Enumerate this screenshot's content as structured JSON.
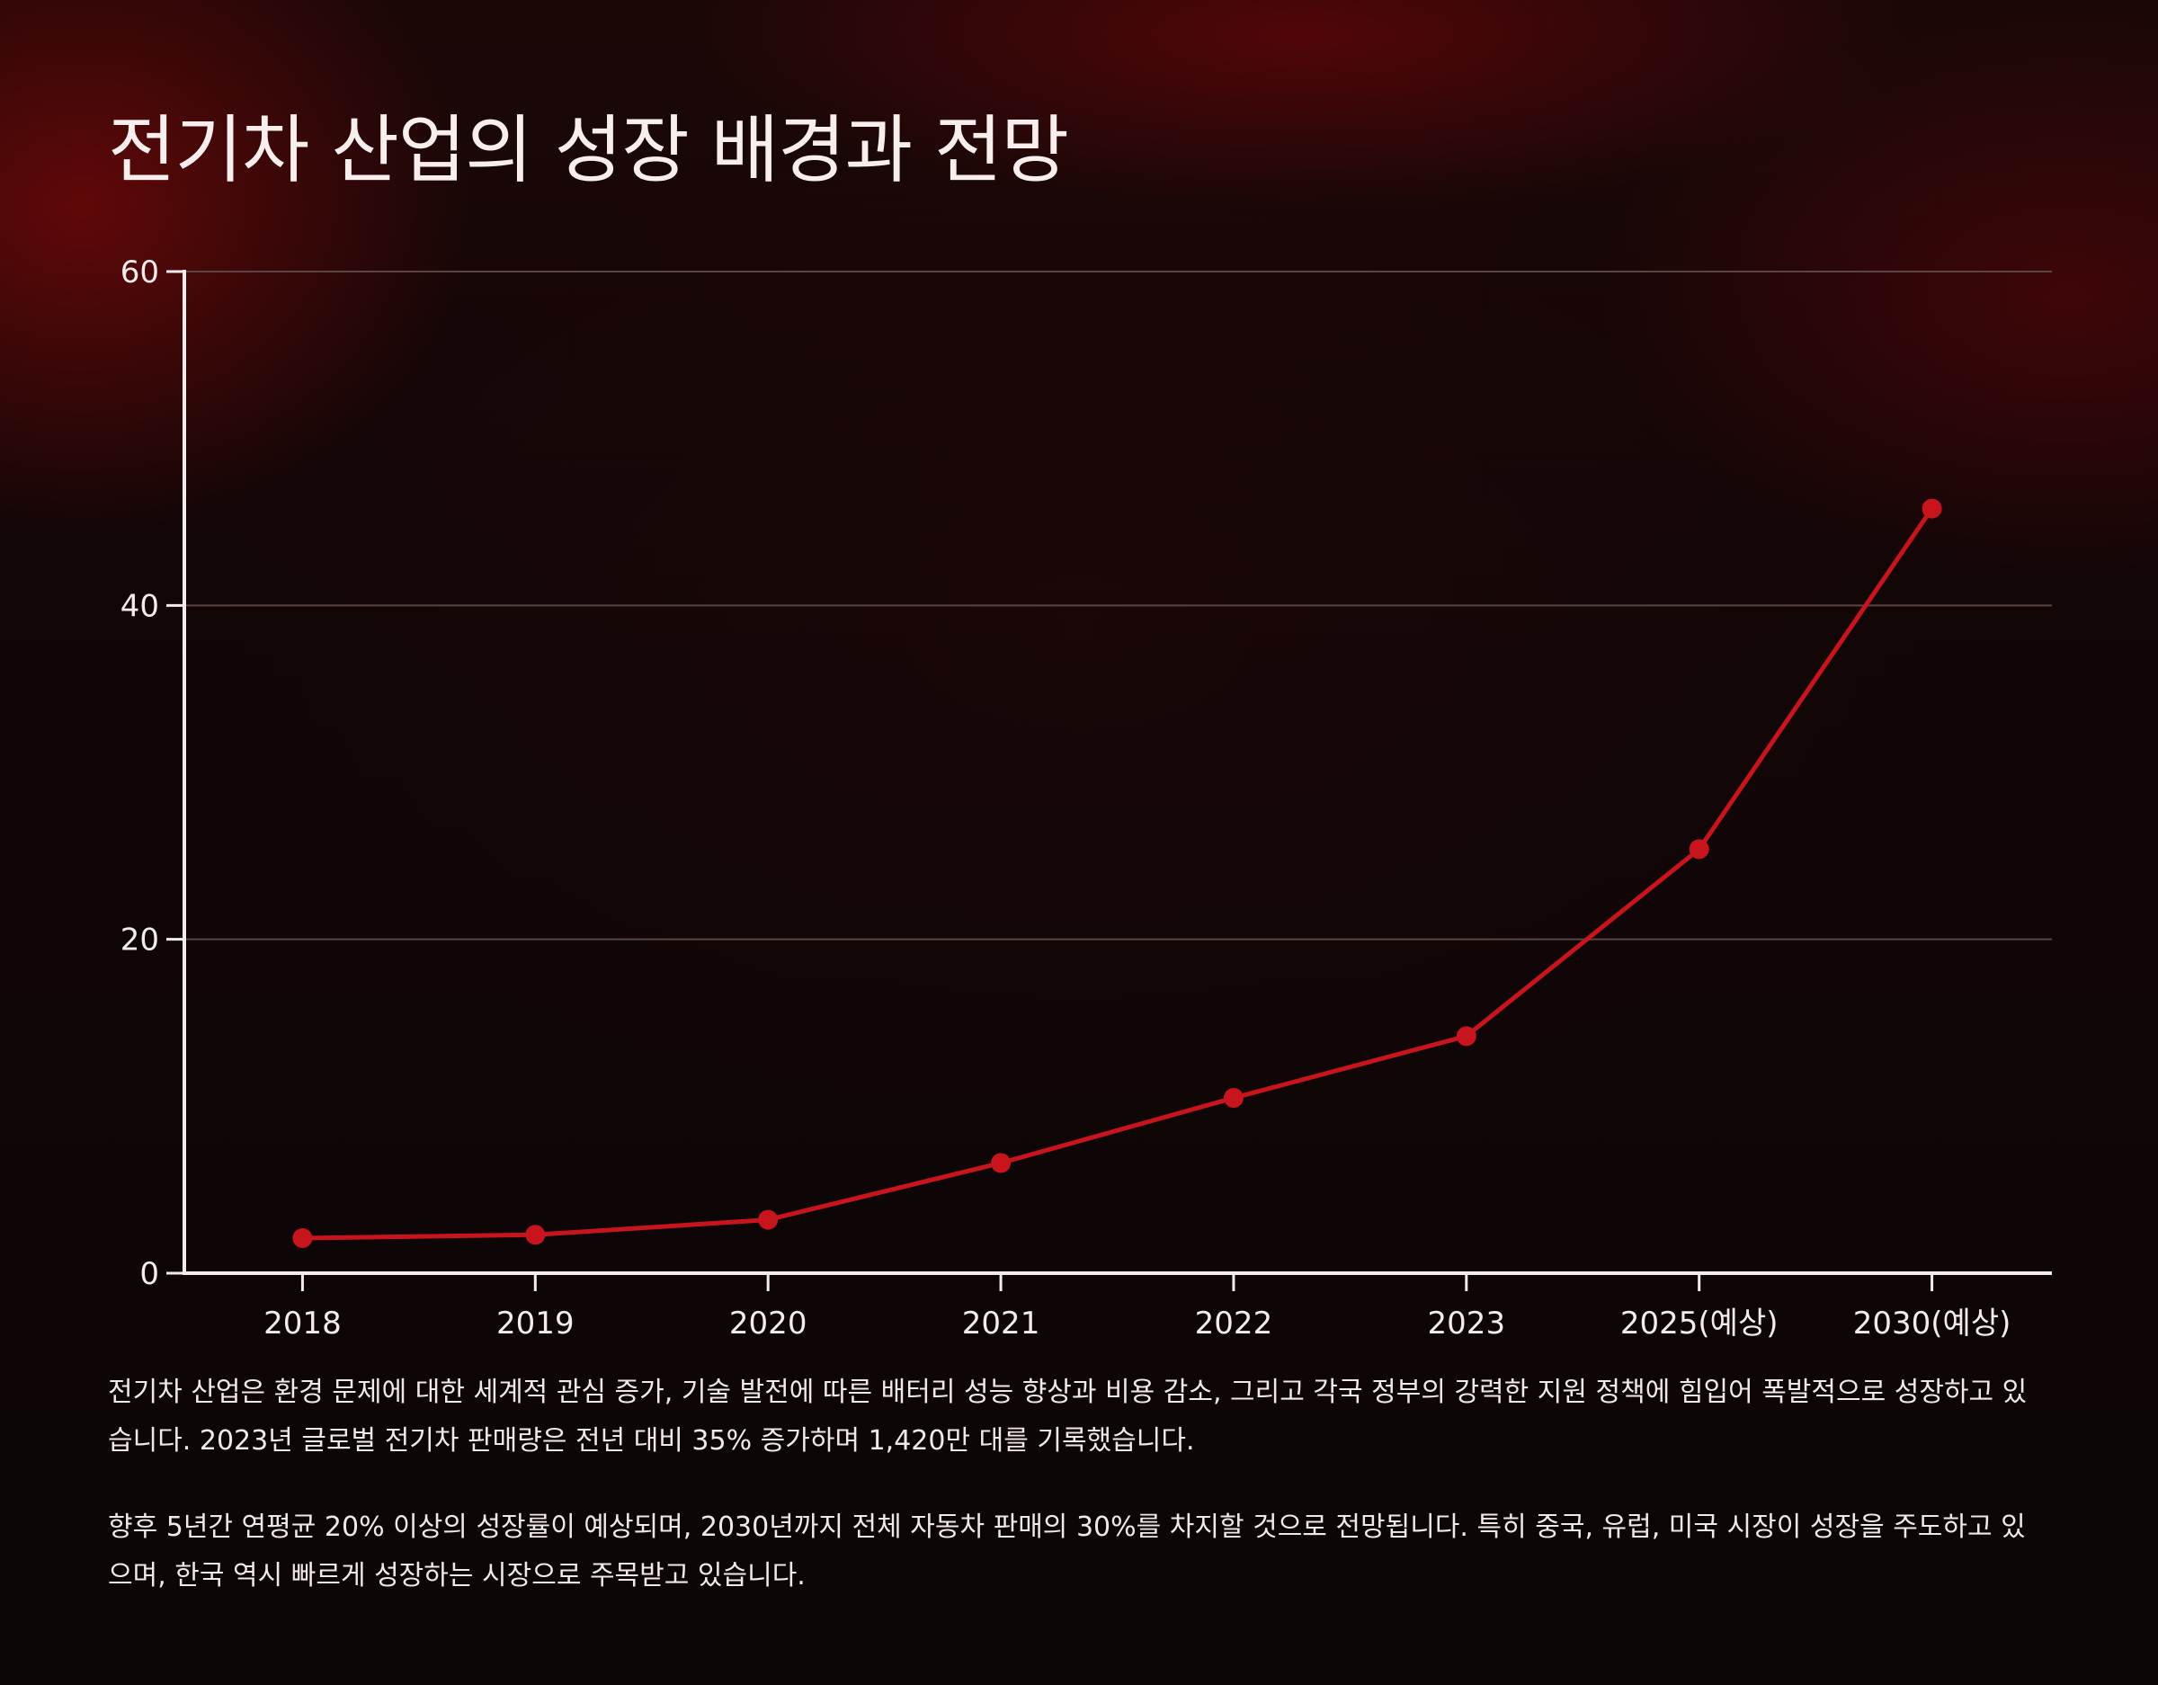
{
  "title": "전기차 산업의 성장 배경과 전망",
  "chart_data": {
    "type": "line",
    "title": "전기차 산업의 성장 배경과 전망",
    "xlabel": "",
    "ylabel": "",
    "categories": [
      "2018",
      "2019",
      "2020",
      "2021",
      "2022",
      "2023",
      "2025(예상)",
      "2030(예상)"
    ],
    "series": [
      {
        "values": [
          2.1,
          2.3,
          3.2,
          6.6,
          10.5,
          14.2,
          25.4,
          45.8
        ]
      }
    ],
    "ylim": [
      0,
      60
    ],
    "yticks": [
      0,
      20,
      40,
      60
    ],
    "grid": true,
    "legend": "none",
    "line_color": "#c8141c",
    "grid_color": "#5a4444",
    "axis_color": "#f4ecec"
  },
  "description": [
    "전기차 산업은 환경 문제에 대한 세계적 관심 증가, 기술 발전에 따른 배터리 성능 향상과 비용 감소, 그리고 각국 정부의 강력한 지원 정책에 힘입어 폭발적으로 성장하고 있습니다. 2023년 글로벌 전기차 판매량은 전년 대비 35% 증가하며 1,420만 대를 기록했습니다.",
    "향후 5년간 연평균 20% 이상의 성장률이 예상되며, 2030년까지 전체 자동차 판매의 30%를 차지할 것으로 전망됩니다. 특히 중국, 유럽, 미국 시장이 성장을 주도하고 있으며, 한국 역시 빠르게 성장하는 시장으로 주목받고 있습니다."
  ]
}
